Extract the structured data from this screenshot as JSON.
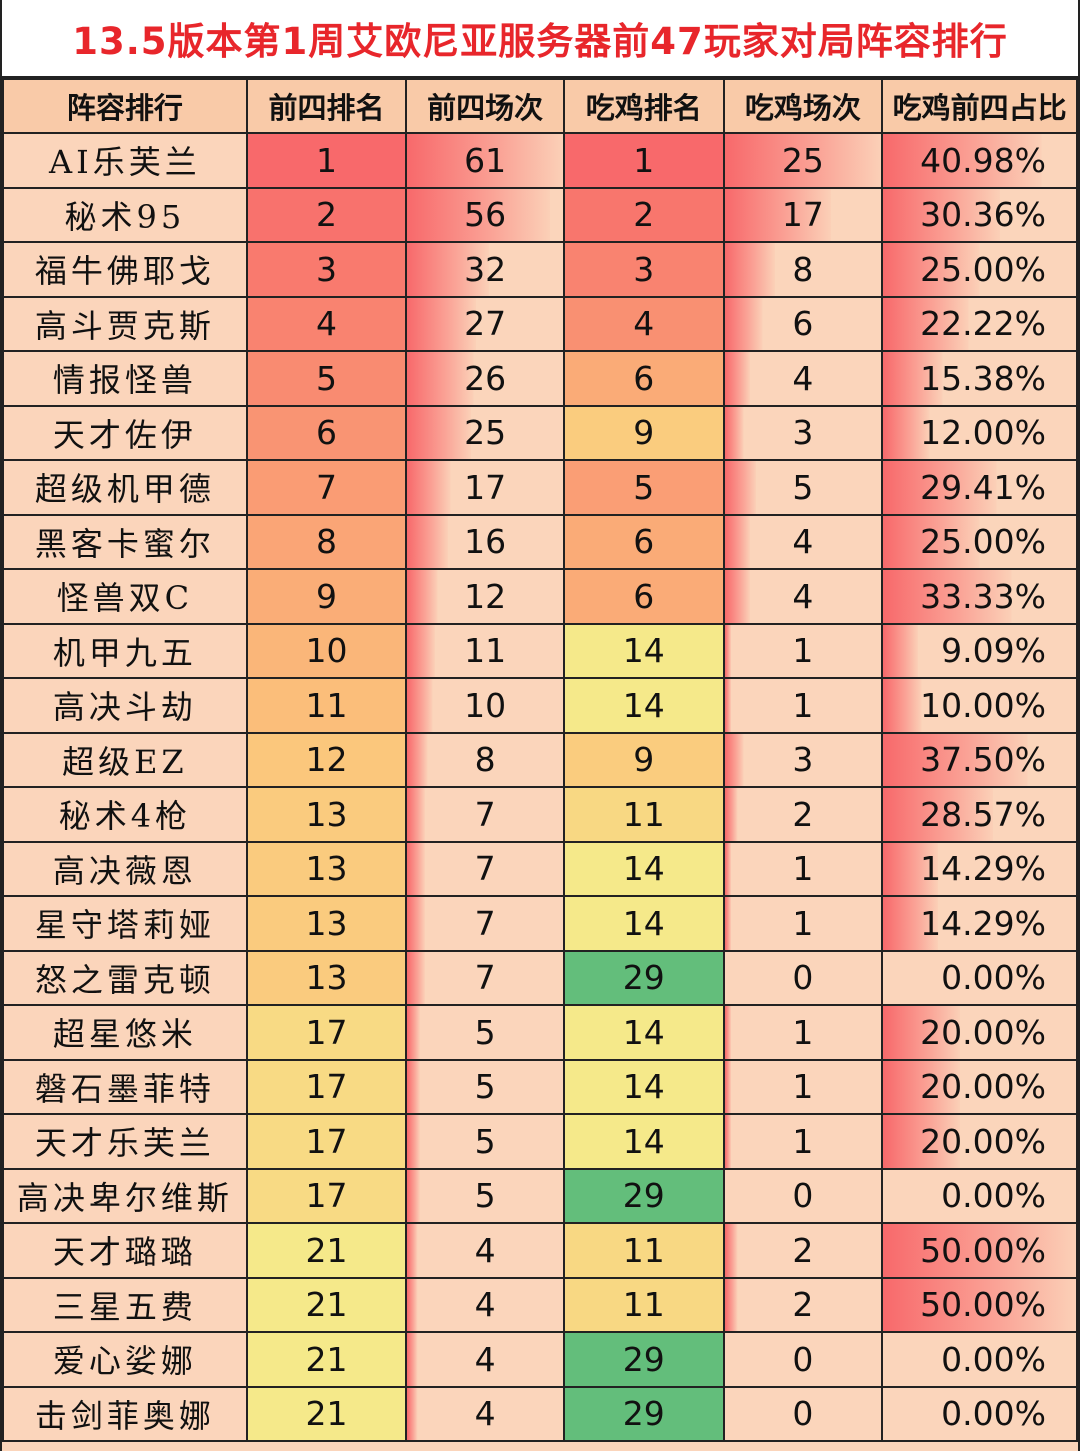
{
  "chart_data": {
    "type": "table",
    "title": "13.5版本第1周艾欧尼亚服务器前47玩家对局阵容排行",
    "columns": [
      "阵容排行",
      "前四排名",
      "前四场次",
      "吃鸡排名",
      "吃鸡场次",
      "吃鸡前四占比"
    ],
    "rows": [
      [
        "AI乐芙兰",
        "1",
        "61",
        "1",
        "25",
        "40.98%"
      ],
      [
        "秘术95",
        "2",
        "56",
        "2",
        "17",
        "30.36%"
      ],
      [
        "福牛佛耶戈",
        "3",
        "32",
        "3",
        "8",
        "25.00%"
      ],
      [
        "高斗贾克斯",
        "4",
        "27",
        "4",
        "6",
        "22.22%"
      ],
      [
        "情报怪兽",
        "5",
        "26",
        "6",
        "4",
        "15.38%"
      ],
      [
        "天才佐伊",
        "6",
        "25",
        "9",
        "3",
        "12.00%"
      ],
      [
        "超级机甲德",
        "7",
        "17",
        "5",
        "5",
        "29.41%"
      ],
      [
        "黑客卡蜜尔",
        "8",
        "16",
        "6",
        "4",
        "25.00%"
      ],
      [
        "怪兽双C",
        "9",
        "12",
        "6",
        "4",
        "33.33%"
      ],
      [
        "机甲九五",
        "10",
        "11",
        "14",
        "1",
        "9.09%"
      ],
      [
        "高决斗劫",
        "11",
        "10",
        "14",
        "1",
        "10.00%"
      ],
      [
        "超级EZ",
        "12",
        "8",
        "9",
        "3",
        "37.50%"
      ],
      [
        "秘术4枪",
        "13",
        "7",
        "11",
        "2",
        "28.57%"
      ],
      [
        "高决薇恩",
        "13",
        "7",
        "14",
        "1",
        "14.29%"
      ],
      [
        "星守塔莉娅",
        "13",
        "7",
        "14",
        "1",
        "14.29%"
      ],
      [
        "怒之雷克顿",
        "13",
        "7",
        "29",
        "0",
        "0.00%"
      ],
      [
        "超星悠米",
        "17",
        "5",
        "14",
        "1",
        "20.00%"
      ],
      [
        "磐石墨菲特",
        "17",
        "5",
        "14",
        "1",
        "20.00%"
      ],
      [
        "天才乐芙兰",
        "17",
        "5",
        "14",
        "1",
        "20.00%"
      ],
      [
        "高决卑尔维斯",
        "17",
        "5",
        "29",
        "0",
        "0.00%"
      ],
      [
        "天才璐璐",
        "21",
        "4",
        "11",
        "2",
        "50.00%"
      ],
      [
        "三星五费",
        "21",
        "4",
        "11",
        "2",
        "50.00%"
      ],
      [
        "爱心娑娜",
        "21",
        "4",
        "29",
        "0",
        "0.00%"
      ],
      [
        "击剑菲奥娜",
        "21",
        "4",
        "29",
        "0",
        "0.00%"
      ]
    ],
    "colors": {
      "title_text": "#e8262b",
      "sheet_bg": "#fbd5bb",
      "header_bg": "#f9caa8",
      "rank_best": "#f8696b",
      "rank_mid": "#fbc77c",
      "rank_low": "#f5e98a",
      "rank_worst": "#63be7b",
      "databar": "#f8696b"
    }
  }
}
